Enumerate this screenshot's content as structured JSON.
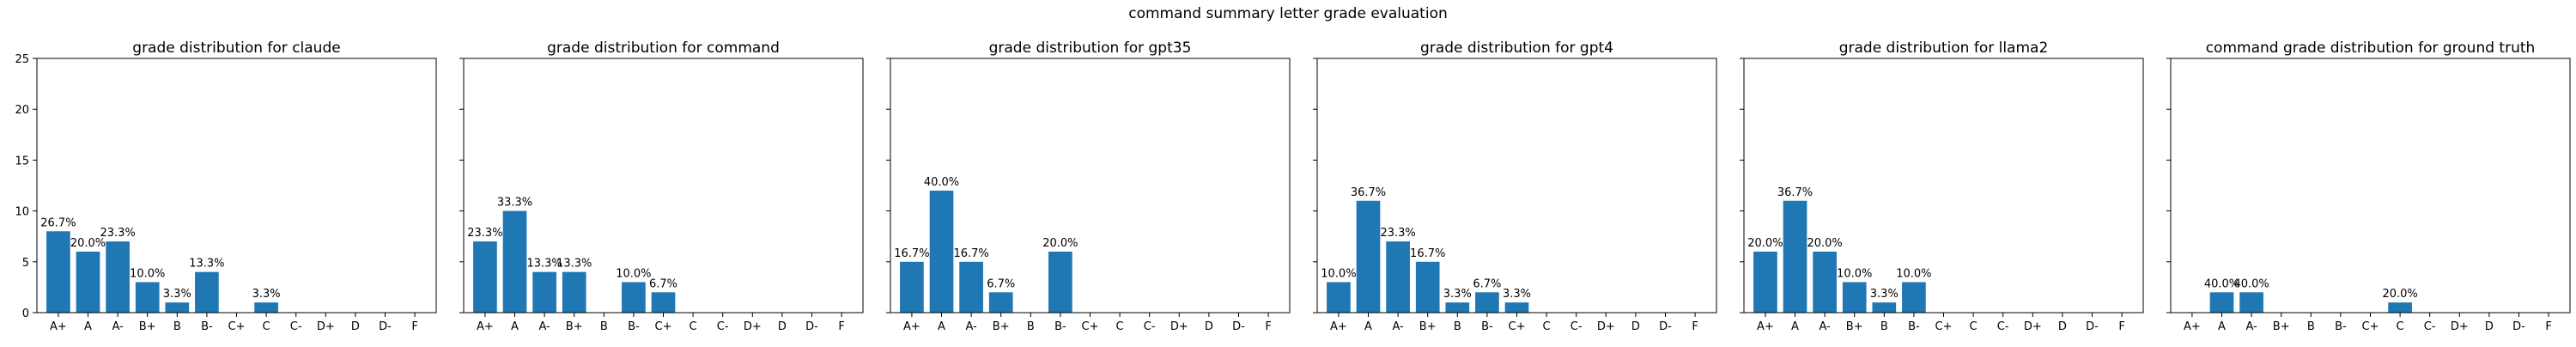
{
  "figure": {
    "suptitle": "command summary letter grade evaluation",
    "bar_color": "#1f77b4"
  },
  "chart_data": [
    {
      "type": "bar",
      "title": "grade distribution for claude",
      "categories": [
        "A+",
        "A",
        "A-",
        "B+",
        "B",
        "B-",
        "C+",
        "C",
        "C-",
        "D+",
        "D",
        "D-",
        "F"
      ],
      "values": [
        8,
        6,
        7,
        3,
        1,
        4,
        0,
        1,
        0,
        0,
        0,
        0,
        0
      ],
      "labels": [
        "26.7%",
        "20.0%",
        "23.3%",
        "10.0%",
        "3.3%",
        "13.3%",
        "",
        "3.3%",
        "",
        "",
        "",
        "",
        ""
      ],
      "ylim": [
        0,
        25
      ],
      "yticks": [
        0,
        5,
        10,
        15,
        20,
        25
      ],
      "xlabel": "",
      "ylabel": "",
      "grid": false
    },
    {
      "type": "bar",
      "title": "grade distribution for command",
      "categories": [
        "A+",
        "A",
        "A-",
        "B+",
        "B",
        "B-",
        "C+",
        "C",
        "C-",
        "D+",
        "D",
        "D-",
        "F"
      ],
      "values": [
        7,
        10,
        4,
        4,
        0,
        3,
        2,
        0,
        0,
        0,
        0,
        0,
        0
      ],
      "labels": [
        "23.3%",
        "33.3%",
        "13.3%",
        "13.3%",
        "",
        "10.0%",
        "6.7%",
        "",
        "",
        "",
        "",
        "",
        ""
      ],
      "ylim": [
        0,
        25
      ],
      "yticks": [
        0,
        5,
        10,
        15,
        20,
        25
      ],
      "xlabel": "",
      "ylabel": "",
      "grid": false
    },
    {
      "type": "bar",
      "title": "grade distribution for gpt35",
      "categories": [
        "A+",
        "A",
        "A-",
        "B+",
        "B",
        "B-",
        "C+",
        "C",
        "C-",
        "D+",
        "D",
        "D-",
        "F"
      ],
      "values": [
        5,
        12,
        5,
        2,
        0,
        6,
        0,
        0,
        0,
        0,
        0,
        0,
        0
      ],
      "labels": [
        "16.7%",
        "40.0%",
        "16.7%",
        "6.7%",
        "",
        "20.0%",
        "",
        "",
        "",
        "",
        "",
        "",
        ""
      ],
      "ylim": [
        0,
        25
      ],
      "yticks": [
        0,
        5,
        10,
        15,
        20,
        25
      ],
      "xlabel": "",
      "ylabel": "",
      "grid": false
    },
    {
      "type": "bar",
      "title": "grade distribution for gpt4",
      "categories": [
        "A+",
        "A",
        "A-",
        "B+",
        "B",
        "B-",
        "C+",
        "C",
        "C-",
        "D+",
        "D",
        "D-",
        "F"
      ],
      "values": [
        3,
        11,
        7,
        5,
        1,
        2,
        1,
        0,
        0,
        0,
        0,
        0,
        0
      ],
      "labels": [
        "10.0%",
        "36.7%",
        "23.3%",
        "16.7%",
        "3.3%",
        "6.7%",
        "3.3%",
        "",
        "",
        "",
        "",
        "",
        ""
      ],
      "ylim": [
        0,
        25
      ],
      "yticks": [
        0,
        5,
        10,
        15,
        20,
        25
      ],
      "xlabel": "",
      "ylabel": "",
      "grid": false
    },
    {
      "type": "bar",
      "title": "grade distribution for llama2",
      "categories": [
        "A+",
        "A",
        "A-",
        "B+",
        "B",
        "B-",
        "C+",
        "C",
        "C-",
        "D+",
        "D",
        "D-",
        "F"
      ],
      "values": [
        6,
        11,
        6,
        3,
        1,
        3,
        0,
        0,
        0,
        0,
        0,
        0,
        0
      ],
      "labels": [
        "20.0%",
        "36.7%",
        "20.0%",
        "10.0%",
        "3.3%",
        "10.0%",
        "",
        "",
        "",
        "",
        "",
        "",
        ""
      ],
      "ylim": [
        0,
        25
      ],
      "yticks": [
        0,
        5,
        10,
        15,
        20,
        25
      ],
      "xlabel": "",
      "ylabel": "",
      "grid": false
    },
    {
      "type": "bar",
      "title": "command grade distribution for ground truth",
      "categories": [
        "A+",
        "A",
        "A-",
        "B+",
        "B",
        "B-",
        "C+",
        "C",
        "C-",
        "D+",
        "D",
        "D-",
        "F"
      ],
      "values": [
        0,
        2,
        2,
        0,
        0,
        0,
        0,
        1,
        0,
        0,
        0,
        0,
        0
      ],
      "labels": [
        "",
        "40.0%",
        "40.0%",
        "",
        "",
        "",
        "",
        "20.0%",
        "",
        "",
        "",
        "",
        ""
      ],
      "ylim": [
        0,
        25
      ],
      "yticks": [
        0,
        5,
        10,
        15,
        20,
        25
      ],
      "xlabel": "",
      "ylabel": "",
      "grid": false
    }
  ]
}
